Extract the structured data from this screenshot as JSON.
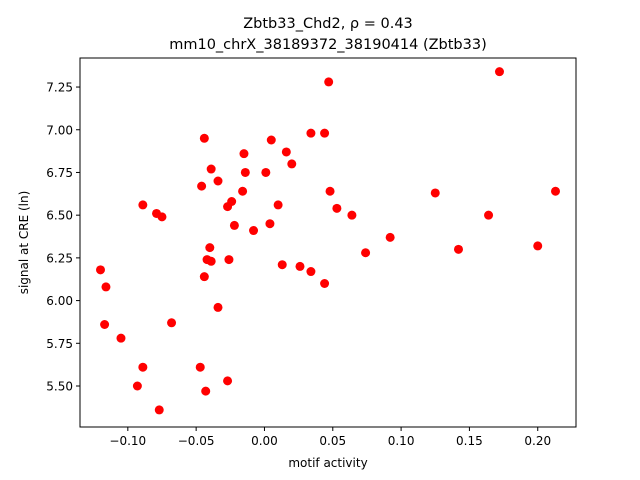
{
  "chart_data": {
    "type": "scatter",
    "title": "Zbtb33_Chd2, ρ = 0.43",
    "subtitle": "mm10_chrX_38189372_38190414 (Zbtb33)",
    "xlabel": "motif activity",
    "ylabel": "signal at CRE (ln)",
    "xlim": [
      -0.135,
      0.228
    ],
    "ylim": [
      5.26,
      7.42
    ],
    "xticks": [
      -0.1,
      -0.05,
      0.0,
      0.05,
      0.1,
      0.15,
      0.2
    ],
    "xtick_labels": [
      "−0.10",
      "−0.05",
      "0.00",
      "0.05",
      "0.10",
      "0.15",
      "0.20"
    ],
    "yticks": [
      5.5,
      5.75,
      6.0,
      6.25,
      6.5,
      6.75,
      7.0,
      7.25
    ],
    "ytick_labels": [
      "5.50",
      "5.75",
      "6.00",
      "6.25",
      "6.50",
      "6.75",
      "7.00",
      "7.25"
    ],
    "grid": false,
    "marker_color": "#ff0000",
    "points": [
      {
        "x": -0.12,
        "y": 6.18
      },
      {
        "x": -0.116,
        "y": 6.08
      },
      {
        "x": -0.117,
        "y": 5.86
      },
      {
        "x": -0.105,
        "y": 5.78
      },
      {
        "x": -0.093,
        "y": 5.5
      },
      {
        "x": -0.089,
        "y": 5.61
      },
      {
        "x": -0.089,
        "y": 6.56
      },
      {
        "x": -0.079,
        "y": 6.51
      },
      {
        "x": -0.075,
        "y": 6.49
      },
      {
        "x": -0.077,
        "y": 5.36
      },
      {
        "x": -0.068,
        "y": 5.87
      },
      {
        "x": -0.047,
        "y": 5.61
      },
      {
        "x": -0.046,
        "y": 6.67
      },
      {
        "x": -0.044,
        "y": 6.95
      },
      {
        "x": -0.044,
        "y": 6.14
      },
      {
        "x": -0.043,
        "y": 5.47
      },
      {
        "x": -0.042,
        "y": 6.24
      },
      {
        "x": -0.04,
        "y": 6.31
      },
      {
        "x": -0.039,
        "y": 6.23
      },
      {
        "x": -0.039,
        "y": 6.77
      },
      {
        "x": -0.034,
        "y": 6.7
      },
      {
        "x": -0.034,
        "y": 5.96
      },
      {
        "x": -0.027,
        "y": 5.53
      },
      {
        "x": -0.027,
        "y": 6.55
      },
      {
        "x": -0.026,
        "y": 6.24
      },
      {
        "x": -0.024,
        "y": 6.58
      },
      {
        "x": -0.022,
        "y": 6.44
      },
      {
        "x": -0.016,
        "y": 6.64
      },
      {
        "x": -0.015,
        "y": 6.86
      },
      {
        "x": -0.014,
        "y": 6.75
      },
      {
        "x": -0.008,
        "y": 6.41
      },
      {
        "x": 0.001,
        "y": 6.75
      },
      {
        "x": 0.004,
        "y": 6.45
      },
      {
        "x": 0.005,
        "y": 6.94
      },
      {
        "x": 0.01,
        "y": 6.56
      },
      {
        "x": 0.013,
        "y": 6.21
      },
      {
        "x": 0.016,
        "y": 6.87
      },
      {
        "x": 0.02,
        "y": 6.8
      },
      {
        "x": 0.026,
        "y": 6.2
      },
      {
        "x": 0.034,
        "y": 6.98
      },
      {
        "x": 0.034,
        "y": 6.17
      },
      {
        "x": 0.044,
        "y": 6.98
      },
      {
        "x": 0.044,
        "y": 6.1
      },
      {
        "x": 0.047,
        "y": 7.28
      },
      {
        "x": 0.048,
        "y": 6.64
      },
      {
        "x": 0.053,
        "y": 6.54
      },
      {
        "x": 0.064,
        "y": 6.5
      },
      {
        "x": 0.074,
        "y": 6.28
      },
      {
        "x": 0.092,
        "y": 6.37
      },
      {
        "x": 0.125,
        "y": 6.63
      },
      {
        "x": 0.142,
        "y": 6.3
      },
      {
        "x": 0.164,
        "y": 6.5
      },
      {
        "x": 0.172,
        "y": 7.34
      },
      {
        "x": 0.2,
        "y": 6.32
      },
      {
        "x": 0.213,
        "y": 6.64
      }
    ]
  }
}
